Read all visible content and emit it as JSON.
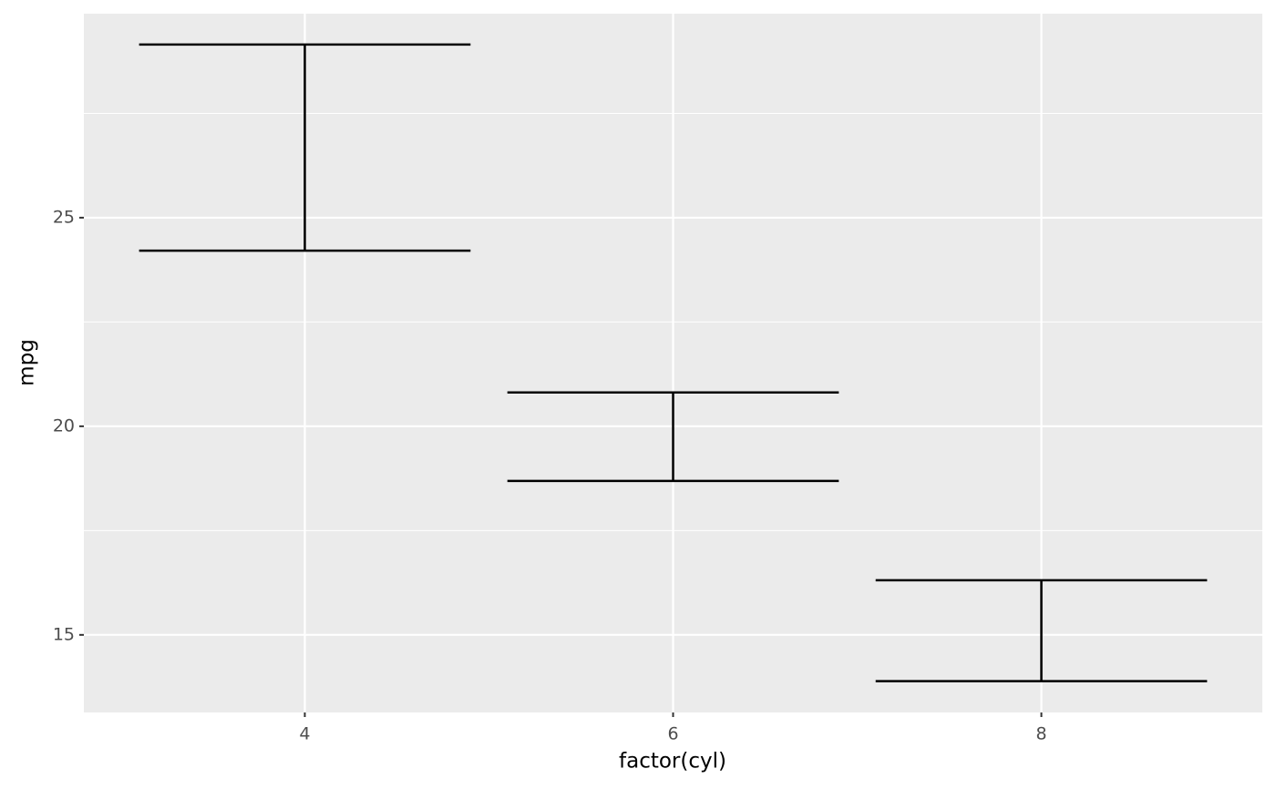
{
  "chart_data": {
    "type": "errorbar",
    "x_label": "factor(cyl)",
    "y_label": "mpg",
    "categories": [
      "4",
      "6",
      "8"
    ],
    "series": [
      {
        "color": "#000000",
        "ymin": [
          24.21,
          18.69,
          13.89
        ],
        "ymax": [
          29.15,
          20.81,
          16.31
        ]
      }
    ],
    "ylim": [
      13.14,
      29.89
    ],
    "yticks": [
      15,
      20,
      25
    ],
    "minor_yticks": [
      17.5,
      22.5,
      27.5
    ],
    "grid": true
  }
}
